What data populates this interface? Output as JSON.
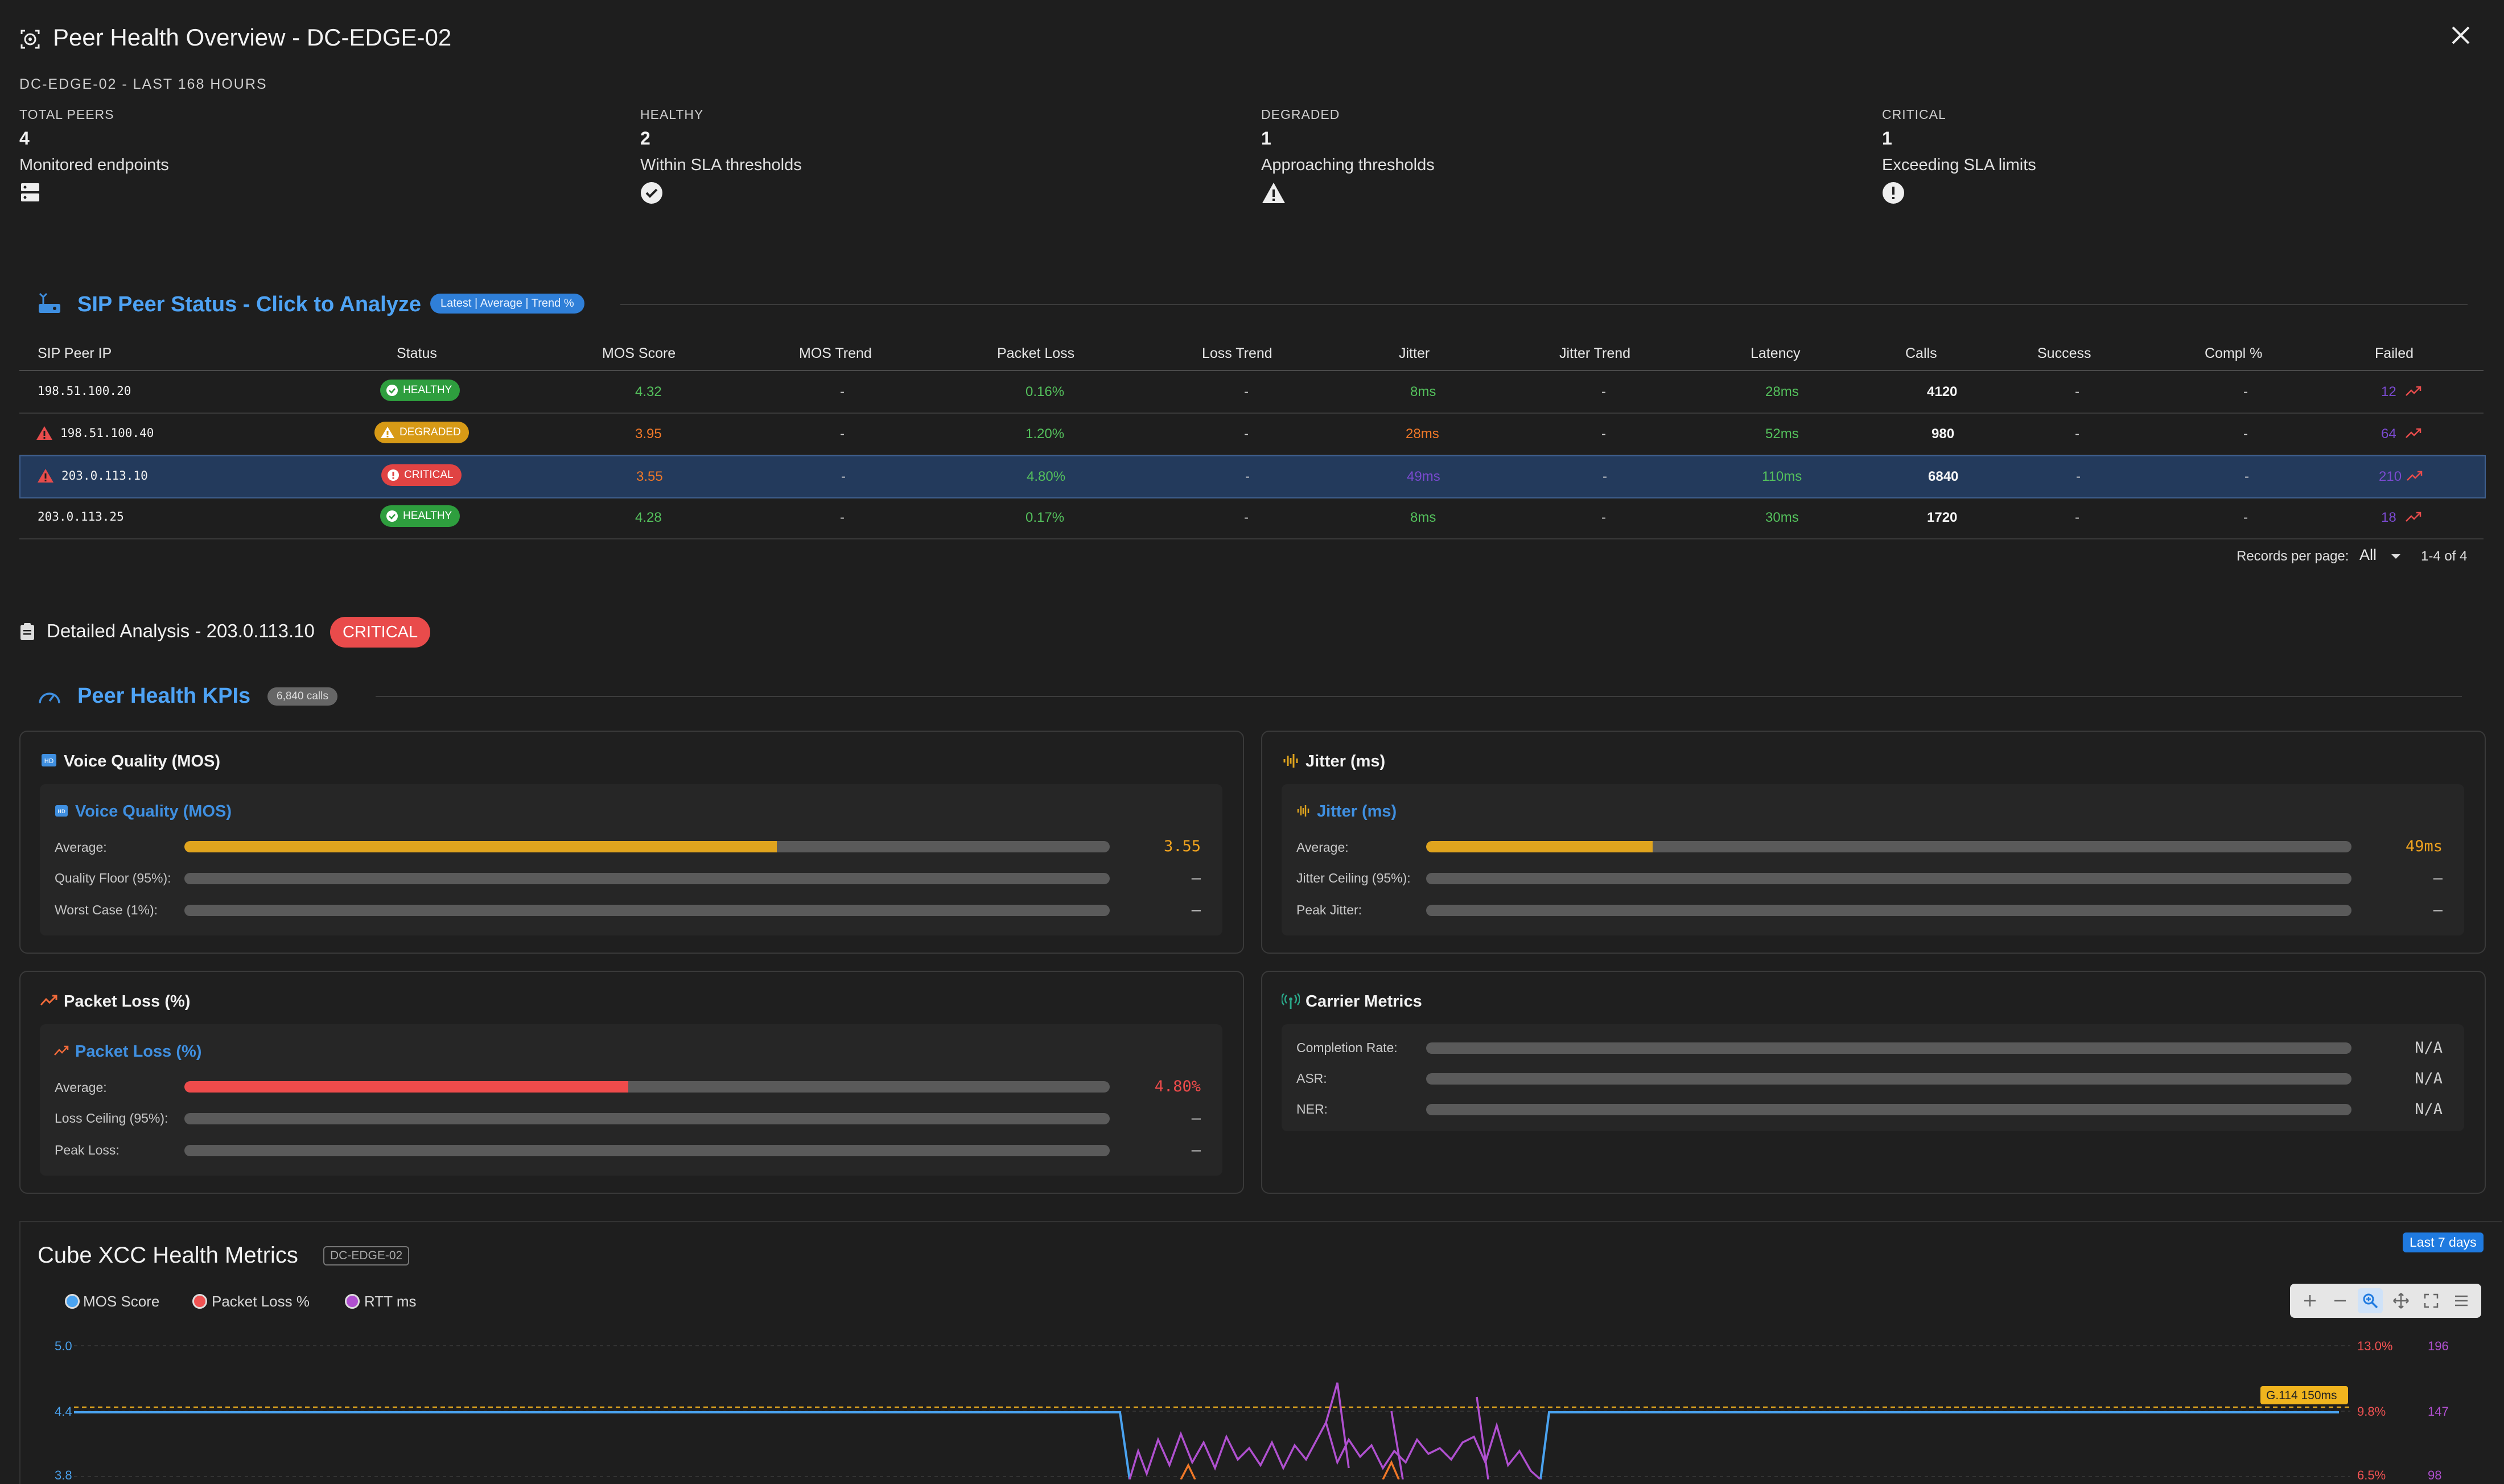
{
  "header": {
    "title": "Peer Health Overview - DC-EDGE-02",
    "subtitle": "DC-EDGE-02 - LAST 168 HOURS"
  },
  "stats": [
    {
      "label": "TOTAL PEERS",
      "value": "4",
      "desc": "Monitored endpoints",
      "icon": "server-icon"
    },
    {
      "label": "HEALTHY",
      "value": "2",
      "desc": "Within SLA thresholds",
      "icon": "check-circle-icon"
    },
    {
      "label": "DEGRADED",
      "value": "1",
      "desc": "Approaching thresholds",
      "icon": "warning-icon"
    },
    {
      "label": "CRITICAL",
      "value": "1",
      "desc": "Exceeding SLA limits",
      "icon": "error-circle-icon"
    }
  ],
  "peer_status": {
    "title": "SIP Peer Status - Click to Analyze",
    "pill": "Latest | Average | Trend %",
    "columns": [
      "SIP Peer IP",
      "Status",
      "MOS Score",
      "MOS Trend",
      "Packet Loss",
      "Loss Trend",
      "Jitter",
      "Jitter Trend",
      "Latency",
      "Calls",
      "Success",
      "Compl %",
      "Failed"
    ],
    "rows": [
      {
        "ip": "198.51.100.20",
        "status": "HEALTHY",
        "mos": "4.32",
        "mos_trend": "-",
        "loss": "0.16%",
        "loss_trend": "-",
        "jitter": "8ms",
        "jitter_trend": "-",
        "latency": "28ms",
        "calls": "4120",
        "success": "-",
        "compl": "-",
        "failed": "12"
      },
      {
        "ip": "198.51.100.40",
        "status": "DEGRADED",
        "mos": "3.95",
        "mos_trend": "-",
        "loss": "1.20%",
        "loss_trend": "-",
        "jitter": "28ms",
        "jitter_trend": "-",
        "latency": "52ms",
        "calls": "980",
        "success": "-",
        "compl": "-",
        "failed": "64"
      },
      {
        "ip": "203.0.113.10",
        "status": "CRITICAL",
        "mos": "3.55",
        "mos_trend": "-",
        "loss": "4.80%",
        "loss_trend": "-",
        "jitter": "49ms",
        "jitter_trend": "-",
        "latency": "110ms",
        "calls": "6840",
        "success": "-",
        "compl": "-",
        "failed": "210"
      },
      {
        "ip": "203.0.113.25",
        "status": "HEALTHY",
        "mos": "4.28",
        "mos_trend": "-",
        "loss": "0.17%",
        "loss_trend": "-",
        "jitter": "8ms",
        "jitter_trend": "-",
        "latency": "30ms",
        "calls": "1720",
        "success": "-",
        "compl": "-",
        "failed": "18"
      }
    ],
    "pagination": {
      "label": "Records per page:",
      "value": "All",
      "range": "1-4 of 4"
    }
  },
  "detail": {
    "title": "Detailed Analysis - 203.0.113.10",
    "badge": "CRITICAL"
  },
  "kpis": {
    "title": "Peer Health KPIs",
    "pill": "6,840 calls",
    "voice": {
      "title": "Voice Quality (MOS)",
      "inner_title": "Voice Quality (MOS)",
      "metrics": [
        {
          "label": "Average:",
          "value": "3.55",
          "fill": 0.64
        },
        {
          "label": "Quality Floor (95%):",
          "value": "–",
          "fill": 0
        },
        {
          "label": "Worst Case (1%):",
          "value": "–",
          "fill": 0
        }
      ]
    },
    "jitter": {
      "title": "Jitter (ms)",
      "inner_title": "Jitter (ms)",
      "metrics": [
        {
          "label": "Average:",
          "value": "49ms",
          "fill": 0.245
        },
        {
          "label": "Jitter Ceiling (95%):",
          "value": "–",
          "fill": 0
        },
        {
          "label": "Peak Jitter:",
          "value": "–",
          "fill": 0
        }
      ]
    },
    "loss": {
      "title": "Packet Loss (%)",
      "inner_title": "Packet Loss (%)",
      "metrics": [
        {
          "label": "Average:",
          "value": "4.80%",
          "fill": 0.48
        },
        {
          "label": "Loss Ceiling (95%):",
          "value": "–",
          "fill": 0
        },
        {
          "label": "Peak Loss:",
          "value": "–",
          "fill": 0
        }
      ]
    },
    "carrier": {
      "title": "Carrier Metrics",
      "metrics": [
        {
          "label": "Completion Rate:",
          "value": "N/A"
        },
        {
          "label": "ASR:",
          "value": "N/A"
        },
        {
          "label": "NER:",
          "value": "N/A"
        }
      ]
    }
  },
  "health_chart": {
    "title": "Cube XCC Health Metrics",
    "tag": "DC-EDGE-02",
    "range_badge": "Last 7 days",
    "legend": [
      "MOS Score",
      "Packet Loss %",
      "RTT ms"
    ],
    "threshold_label": "G.114 150ms"
  },
  "chart_data": {
    "type": "line",
    "title": "Cube XCC Health Metrics",
    "series": [
      {
        "name": "MOS Score",
        "color": "#4aa3f0"
      },
      {
        "name": "Packet Loss %",
        "color": "#f06060"
      },
      {
        "name": "RTT ms",
        "color": "#b050d0"
      }
    ],
    "y_left_ticks": [
      "5.0",
      "4.4",
      "3.8"
    ],
    "y_right1_ticks": [
      "13.0%",
      "9.8%",
      "6.5%"
    ],
    "y_right2_ticks": [
      "196",
      "147",
      "98"
    ],
    "y_left_range": [
      3.8,
      5.0
    ],
    "threshold": {
      "label": "G.114 150ms",
      "value": 150
    }
  },
  "colors": {
    "accent": "#4ea3f5",
    "healthy": "#2e9e3e",
    "degraded": "#d79a16",
    "critical": "#e04343"
  }
}
